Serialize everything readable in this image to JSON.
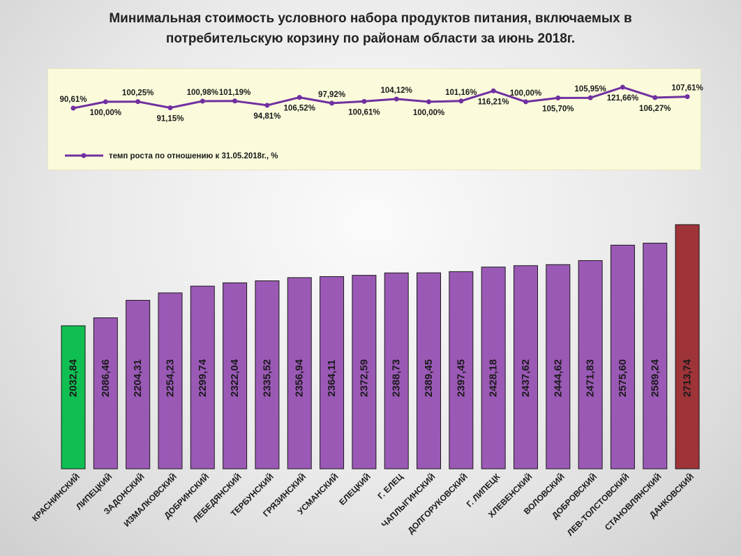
{
  "title": {
    "line1": "Минимальная стоимость условного набора продуктов питания, включаемых в",
    "line2": "потребительскую корзину  по районам области  за июнь 2018г."
  },
  "chart_data": [
    {
      "type": "line",
      "series_name": "темп роста по отношению к 31.05.2018г.,  %",
      "color": "#7030a0",
      "values": [
        90.61,
        100.0,
        100.25,
        91.15,
        100.98,
        101.19,
        94.81,
        106.52,
        97.92,
        100.61,
        104.12,
        100.0,
        101.16,
        116.21,
        100.0,
        105.7,
        105.95,
        121.66,
        106.27,
        107.61
      ],
      "labels": [
        "90,61%",
        "100,00%",
        "100,25%",
        "91,15%",
        "100,98%",
        "101,19%",
        "94,81%",
        "106,52%",
        "97,92%",
        "100,61%",
        "104,12%",
        "100,00%",
        "101,16%",
        "116,21%",
        "100,00%",
        "105,70%",
        "105,95%",
        "121,66%",
        "106,27%",
        "107,61%"
      ],
      "label_positions": [
        "above",
        "below",
        "above",
        "below",
        "above",
        "above",
        "below",
        "below",
        "above",
        "below",
        "above",
        "below",
        "above",
        "below",
        "above",
        "below",
        "above",
        "below",
        "below",
        "above"
      ]
    },
    {
      "type": "bar",
      "categories": [
        "КРАСНИНСКИЙ",
        "ЛИПЕЦКИЙ",
        "ЗАДОНСКИЙ",
        "ИЗМАЛКОВСКИЙ",
        "ДОБРИНСКИЙ",
        "ЛЕБЕДЯНСКИЙ",
        "ТЕРБУНСКИЙ",
        "ГРЯЗИНСКИЙ",
        "УСМАНСКИЙ",
        "ЕЛЕЦКИЙ",
        "Г. ЕЛЕЦ",
        "ЧАПЛЫГИНСКИЙ",
        "ДОЛГОРУКОВСКИЙ",
        "Г. ЛИПЕЦК",
        "ХЛЕВЕНСКИЙ",
        "ВОЛОВСКИЙ",
        "ДОБРОВСКИЙ",
        "ЛЕВ-ТОЛСТОВСКИЙ",
        "СТАНОВЛЯНСКИЙ",
        "ДАНКОВСКИЙ"
      ],
      "values": [
        2032.84,
        2086.46,
        2204.31,
        2254.23,
        2299.74,
        2322.04,
        2335.52,
        2356.94,
        2364.11,
        2372.59,
        2388.73,
        2389.45,
        2397.45,
        2428.18,
        2437.62,
        2444.62,
        2471.83,
        2575.6,
        2589.24,
        2713.74
      ],
      "value_labels": [
        "2032,84",
        "2086,46",
        "2204,31",
        "2254,23",
        "2299,74",
        "2322,04",
        "2335,52",
        "2356,94",
        "2364,11",
        "2372,59",
        "2388,73",
        "2389,45",
        "2397,45",
        "2428,18",
        "2437,62",
        "2444,62",
        "2471,83",
        "2575,60",
        "2589,24",
        "2713,74"
      ],
      "ylim": [
        1070,
        2713.74
      ],
      "colors": {
        "default": "#9b59b6",
        "min": "#0fbf52",
        "max": "#9e3338"
      }
    }
  ]
}
